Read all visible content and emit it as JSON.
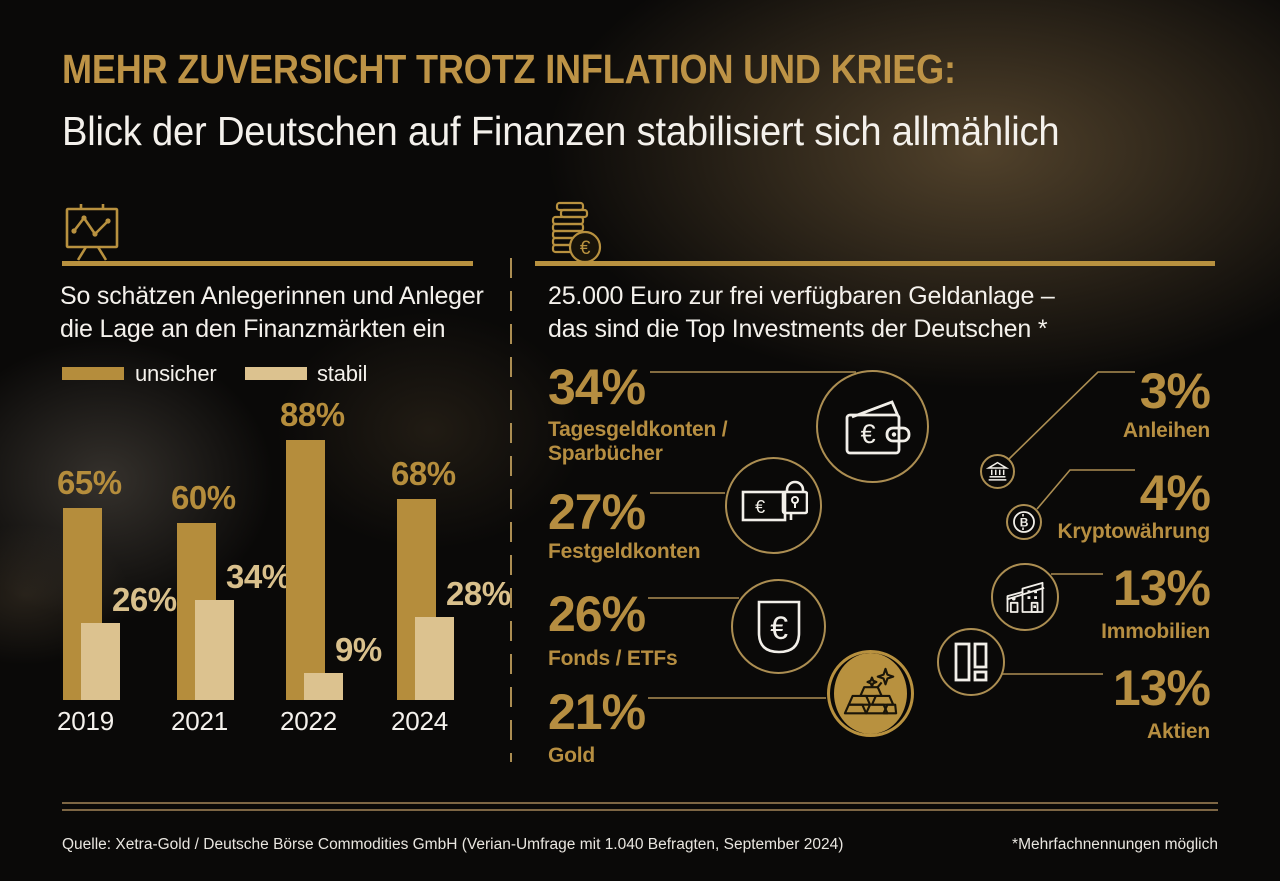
{
  "header": {
    "title": "MEHR ZUVERSICHT TROTZ INFLATION UND KRIEG:",
    "subtitle": "Blick der Deutschen auf Finanzen stabilisiert sich allmählich"
  },
  "left_panel": {
    "icon": "presentation-chart-icon",
    "heading": "So schätzen Anlegerinnen und Anleger\ndie Lage an den Finanzmärkten ein",
    "legend": [
      {
        "label": "unsicher",
        "color": "#b58d3c"
      },
      {
        "label": "stabil",
        "color": "#dcc28f"
      }
    ]
  },
  "right_panel": {
    "icon": "euro-coins-icon",
    "heading": "25.000 Euro zur frei verfügbaren Geldanlage –\ndas sind die Top Investments der Deutschen *",
    "investments": [
      {
        "value": "34%",
        "label": "Tagesgeldkonten /\nSparbücher",
        "icon": "wallet-icon"
      },
      {
        "value": "27%",
        "label": "Festgeldkonten",
        "icon": "lock-euro-icon"
      },
      {
        "value": "26%",
        "label": "Fonds / ETFs",
        "icon": "euro-sign-icon"
      },
      {
        "value": "21%",
        "label": "Gold",
        "icon": "gold-bars-icon"
      },
      {
        "value": "3%",
        "label": "Anleihen",
        "icon": "bank-icon"
      },
      {
        "value": "4%",
        "label": "Kryptowährung",
        "icon": "bitcoin-icon"
      },
      {
        "value": "13%",
        "label": "Immobilien",
        "icon": "house-icon"
      },
      {
        "value": "13%",
        "label": "Aktien",
        "icon": "shares-icon"
      }
    ]
  },
  "footer": {
    "source": "Quelle: Xetra-Gold / Deutsche Börse Commodities GmbH (Verian-Umfrage mit 1.040 Befragten, September 2024)",
    "note": "*Mehrfachnennungen möglich"
  },
  "colors": {
    "background": "#0a0908",
    "gold": "#b8913f",
    "dark_bar": "#b58d3c",
    "light_bar": "#dcc28f",
    "white": "#f4f1ec",
    "connector_line": "#ac8e52",
    "footer_line": "#7d6644"
  },
  "chart_data": [
    {
      "type": "bar",
      "title": "So schätzen Anlegerinnen und Anleger die Lage an den Finanzmärkten ein",
      "categories": [
        "2019",
        "2021",
        "2022",
        "2024"
      ],
      "series": [
        {
          "name": "unsicher",
          "values": [
            65,
            60,
            88,
            68
          ],
          "color": "#b58d3c"
        },
        {
          "name": "stabil",
          "values": [
            26,
            34,
            9,
            28
          ],
          "color": "#dcc28f"
        }
      ],
      "unit": "%",
      "ylim": [
        0,
        100
      ],
      "grid": false,
      "legend_position": "top-left",
      "value_labels": true
    },
    {
      "type": "bar",
      "title": "25.000 Euro zur frei verfügbaren Geldanlage – das sind die Top Investments der Deutschen *",
      "categories": [
        "Tagesgeldkonten / Sparbücher",
        "Festgeldkonten",
        "Fonds / ETFs",
        "Gold",
        "Anleihen",
        "Kryptowährung",
        "Immobilien",
        "Aktien"
      ],
      "values": [
        34,
        27,
        26,
        21,
        3,
        4,
        13,
        13
      ],
      "unit": "%"
    }
  ]
}
